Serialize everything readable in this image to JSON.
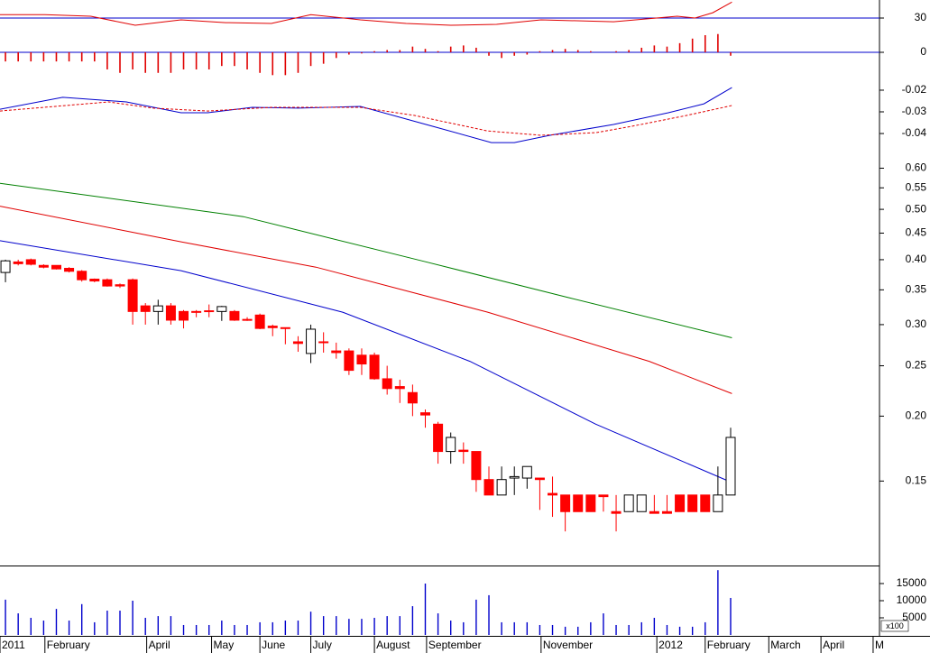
{
  "chart_data": [
    {
      "type": "line",
      "ylim": [
        -23.7,
        45.8
      ],
      "yticks": [
        30,
        0
      ],
      "reference_color": "#0000cc",
      "series": [
        {
          "color": "#e00000",
          "x": [
            -0.43,
            3.1,
            6.7,
            10.2,
            13.8,
            17.3,
            20.9,
            24,
            27.9,
            31.5,
            35,
            38.6,
            42.1,
            47.8,
            52.8,
            54.2,
            55.6,
            57.1
          ],
          "values": [
            33,
            33,
            31.6,
            23.7,
            28.4,
            26,
            25.3,
            33,
            28.4,
            25.3,
            23.7,
            24.5,
            28.4,
            26.8,
            31.6,
            30,
            34.7,
            44
          ]
        },
        {
          "type": "bar",
          "color": "#e00000",
          "x": [
            0,
            1,
            2,
            3,
            4,
            5,
            6,
            7,
            8,
            9,
            10,
            11,
            12,
            13,
            14,
            15,
            16,
            17,
            18,
            19,
            20,
            21,
            22,
            23,
            24,
            25,
            26,
            27,
            28,
            29,
            30,
            31,
            32,
            33,
            34,
            35,
            36,
            37,
            38,
            39,
            40,
            41,
            42,
            43,
            44,
            45,
            46,
            47,
            48,
            49,
            50,
            51,
            52,
            53,
            54,
            55,
            56,
            57
          ],
          "values": [
            -8,
            -8,
            -8,
            -8,
            -8,
            -8,
            -8,
            -8,
            -15,
            -18,
            -15,
            -18,
            -18,
            -18,
            -15,
            -15,
            -15,
            -12,
            -12,
            -15,
            -18,
            -20,
            -20,
            -18,
            -12,
            -10,
            -5,
            -2,
            -1,
            1,
            2,
            2,
            5,
            3,
            1,
            5,
            6,
            4,
            -3,
            -5,
            -3,
            -2,
            1,
            2,
            3,
            2,
            1,
            0,
            1,
            2,
            4,
            6,
            5,
            8,
            12,
            15,
            16,
            -3
          ]
        }
      ]
    },
    {
      "type": "line",
      "ylim": [
        -0.0483,
        -0.0042
      ],
      "yticks": [
        -0.02,
        -0.03,
        -0.04
      ],
      "series": [
        {
          "color": "#0000cc",
          "x": [
            -0.43,
            4.5,
            9.5,
            13.8,
            15.9,
            19.4,
            23,
            27.9,
            33.6,
            38.2,
            40,
            42.8,
            47.8,
            52.1,
            54.9,
            57.1
          ],
          "values": [
            -0.0288,
            -0.0233,
            -0.0254,
            -0.0304,
            -0.0304,
            -0.0279,
            -0.0283,
            -0.0275,
            -0.0367,
            -0.0442,
            -0.0442,
            -0.0408,
            -0.0358,
            -0.0304,
            -0.0263,
            -0.0188
          ]
        },
        {
          "color": "#e00000",
          "dash": true,
          "x": [
            -0.43,
            8.1,
            11.6,
            15.9,
            20.9,
            27.9,
            32.2,
            37.9,
            42.1,
            46.4,
            49.2,
            53.5,
            57.1
          ],
          "values": [
            -0.0296,
            -0.0254,
            -0.0283,
            -0.0296,
            -0.0279,
            -0.0279,
            -0.0317,
            -0.0388,
            -0.0408,
            -0.0396,
            -0.0367,
            -0.0317,
            -0.0271
          ]
        }
      ]
    },
    {
      "type": "candlestick",
      "log_scale": true,
      "ylim": [
        0.104,
        0.646
      ],
      "up_color": "#000000",
      "down_color": "#ff0000",
      "yticks": [
        {
          "value": 0.6,
          "label": "0.60"
        },
        0.55,
        {
          "value": 0.5,
          "label": "0.50"
        },
        0.45,
        {
          "value": 0.4,
          "label": "0.40"
        },
        0.35,
        {
          "value": 0.3,
          "label": "0.30"
        },
        0.25,
        {
          "value": 0.2,
          "label": "0.20"
        },
        0.15
      ],
      "x": [
        0,
        1,
        2,
        3,
        4,
        5,
        6,
        7,
        8,
        9,
        10,
        11,
        12,
        13,
        14,
        15,
        16,
        17,
        18,
        19,
        20,
        21,
        22,
        23,
        24,
        25,
        26,
        27,
        28,
        29,
        30,
        31,
        32,
        33,
        34,
        35,
        36,
        37,
        38,
        39,
        40,
        41,
        42,
        43,
        44,
        45,
        46,
        47,
        48,
        49,
        50,
        51,
        52,
        53,
        54,
        55,
        56,
        57
      ],
      "open": [
        0.378,
        0.396,
        0.4,
        0.39,
        0.39,
        0.385,
        0.38,
        0.367,
        0.366,
        0.358,
        0.366,
        0.326,
        0.318,
        0.326,
        0.318,
        0.318,
        0.319,
        0.318,
        0.318,
        0.307,
        0.313,
        0.298,
        0.296,
        0.278,
        0.264,
        0.278,
        0.267,
        0.267,
        0.262,
        0.262,
        0.236,
        0.228,
        0.222,
        0.203,
        0.193,
        0.171,
        0.172,
        0.171,
        0.151,
        0.141,
        0.152,
        0.152,
        0.152,
        0.142,
        0.141,
        0.141,
        0.141,
        0.141,
        0.131,
        0.131,
        0.131,
        0.131,
        0.131,
        0.141,
        0.141,
        0.141,
        0.131,
        0.141
      ],
      "high": [
        0.4,
        0.4,
        0.402,
        0.392,
        0.39,
        0.387,
        0.382,
        0.368,
        0.368,
        0.36,
        0.368,
        0.33,
        0.335,
        0.33,
        0.32,
        0.32,
        0.328,
        0.326,
        0.32,
        0.31,
        0.315,
        0.3,
        0.296,
        0.285,
        0.3,
        0.29,
        0.277,
        0.27,
        0.27,
        0.265,
        0.25,
        0.235,
        0.23,
        0.206,
        0.195,
        0.186,
        0.178,
        0.171,
        0.16,
        0.16,
        0.16,
        0.16,
        0.152,
        0.153,
        0.141,
        0.141,
        0.141,
        0.141,
        0.141,
        0.141,
        0.141,
        0.141,
        0.141,
        0.141,
        0.141,
        0.141,
        0.16,
        0.19
      ],
      "low": [
        0.362,
        0.39,
        0.39,
        0.385,
        0.383,
        0.378,
        0.363,
        0.362,
        0.355,
        0.353,
        0.3,
        0.3,
        0.3,
        0.3,
        0.295,
        0.31,
        0.31,
        0.305,
        0.305,
        0.305,
        0.294,
        0.285,
        0.275,
        0.266,
        0.253,
        0.265,
        0.258,
        0.24,
        0.24,
        0.235,
        0.22,
        0.212,
        0.2,
        0.19,
        0.162,
        0.162,
        0.162,
        0.143,
        0.141,
        0.141,
        0.141,
        0.145,
        0.132,
        0.128,
        0.12,
        0.131,
        0.131,
        0.131,
        0.12,
        0.131,
        0.131,
        0.131,
        0.131,
        0.131,
        0.131,
        0.131,
        0.131,
        0.141
      ],
      "close": [
        0.398,
        0.393,
        0.392,
        0.387,
        0.384,
        0.38,
        0.366,
        0.364,
        0.356,
        0.356,
        0.318,
        0.318,
        0.326,
        0.306,
        0.306,
        0.317,
        0.318,
        0.325,
        0.306,
        0.306,
        0.295,
        0.296,
        0.295,
        0.276,
        0.294,
        0.277,
        0.265,
        0.245,
        0.252,
        0.236,
        0.226,
        0.226,
        0.212,
        0.201,
        0.171,
        0.182,
        0.171,
        0.151,
        0.141,
        0.151,
        0.153,
        0.16,
        0.151,
        0.141,
        0.131,
        0.131,
        0.131,
        0.14,
        0.13,
        0.141,
        0.141,
        0.13,
        0.13,
        0.131,
        0.131,
        0.131,
        0.141,
        0.182
      ],
      "series": [
        {
          "color": "#008000",
          "x": [
            -0.43,
            18.7,
            32.9,
            44.3,
            57.1
          ],
          "values": [
            0.561,
            0.484,
            0.397,
            0.338,
            0.283
          ]
        },
        {
          "color": "#e00000",
          "x": [
            -0.43,
            13.8,
            24.4,
            37.9,
            50.6,
            57.1
          ],
          "values": [
            0.507,
            0.433,
            0.387,
            0.317,
            0.255,
            0.221
          ]
        },
        {
          "color": "#0000cc",
          "x": [
            -0.43,
            13.8,
            26.5,
            36.5,
            46.4,
            57.1
          ],
          "values": [
            0.435,
            0.381,
            0.317,
            0.255,
            0.193,
            0.149
          ]
        }
      ]
    },
    {
      "type": "bar",
      "color": "#0000cc",
      "ylim": [
        0,
        20000
      ],
      "yticks": [
        15000,
        10000,
        5000
      ],
      "unit_label": "x100",
      "x": [
        0,
        1,
        2,
        3,
        4,
        5,
        6,
        7,
        8,
        9,
        10,
        11,
        12,
        13,
        14,
        15,
        16,
        17,
        18,
        19,
        20,
        21,
        22,
        23,
        24,
        25,
        26,
        27,
        28,
        29,
        30,
        31,
        32,
        33,
        34,
        35,
        36,
        37,
        38,
        39,
        40,
        41,
        42,
        43,
        44,
        45,
        46,
        47,
        48,
        49,
        50,
        51,
        52,
        53,
        54,
        55,
        56,
        57
      ],
      "values": [
        10300,
        6300,
        5000,
        4200,
        7600,
        4200,
        9000,
        3700,
        7100,
        7100,
        10000,
        5000,
        5500,
        5500,
        2900,
        2900,
        2900,
        4200,
        2900,
        2900,
        3700,
        3700,
        4200,
        4200,
        6800,
        5500,
        5500,
        4700,
        4700,
        5000,
        5500,
        5500,
        8400,
        15000,
        6300,
        4200,
        3700,
        10300,
        11600,
        3700,
        3700,
        3700,
        2900,
        2900,
        2400,
        2400,
        3700,
        6300,
        2900,
        2900,
        3700,
        5000,
        2900,
        2400,
        2400,
        3700,
        18900,
        10800
      ],
      "xlim": [
        -0.43,
        68.7
      ],
      "xticks": [
        {
          "value": -0.43,
          "label": "2011"
        },
        {
          "value": 3.1,
          "label": "February"
        },
        {
          "value": 11.1,
          "label": "April"
        },
        {
          "value": 16.2,
          "label": "May"
        },
        {
          "value": 20,
          "label": "June"
        },
        {
          "value": 24,
          "label": "July"
        },
        {
          "value": 29,
          "label": "August"
        },
        {
          "value": 33.1,
          "label": "September"
        },
        {
          "value": 42.1,
          "label": "November"
        },
        {
          "value": 51.2,
          "label": "2012"
        },
        {
          "value": 55,
          "label": "February"
        },
        {
          "value": 60,
          "label": "March"
        },
        {
          "value": 64.1,
          "label": "April"
        },
        {
          "value": 68.2,
          "label": "M"
        }
      ]
    }
  ]
}
